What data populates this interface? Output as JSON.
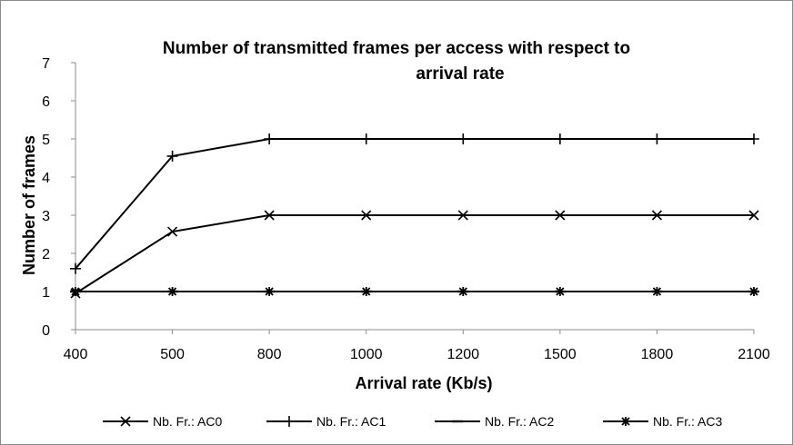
{
  "chart_data": {
    "type": "line",
    "title_line1": "Number of transmitted frames per access with respect to",
    "title_line2": "arrival rate",
    "xlabel": "Arrival rate (Kb/s)",
    "ylabel": "Number of frames",
    "categories": [
      "400",
      "500",
      "800",
      "1000",
      "1200",
      "1500",
      "1800",
      "2100"
    ],
    "ylim": [
      0,
      7
    ],
    "yticks": [
      0,
      1,
      2,
      3,
      4,
      5,
      6,
      7
    ],
    "grid": false,
    "legend_position": "bottom",
    "series": [
      {
        "name": "Nb. Fr.: AC0",
        "marker": "x",
        "values": [
          0.95,
          2.57,
          3,
          3,
          3,
          3,
          3,
          3
        ]
      },
      {
        "name": "Nb. Fr.: AC1",
        "marker": "plus",
        "values": [
          1.6,
          4.55,
          5,
          5,
          5,
          5,
          5,
          5
        ]
      },
      {
        "name": "Nb. Fr.: AC2",
        "marker": "dash",
        "values": [
          1,
          1,
          1,
          1,
          1,
          1,
          1,
          1
        ]
      },
      {
        "name": "Nb. Fr.: AC3",
        "marker": "star",
        "values": [
          1,
          1,
          1,
          1,
          1,
          1,
          1,
          1
        ]
      }
    ]
  }
}
